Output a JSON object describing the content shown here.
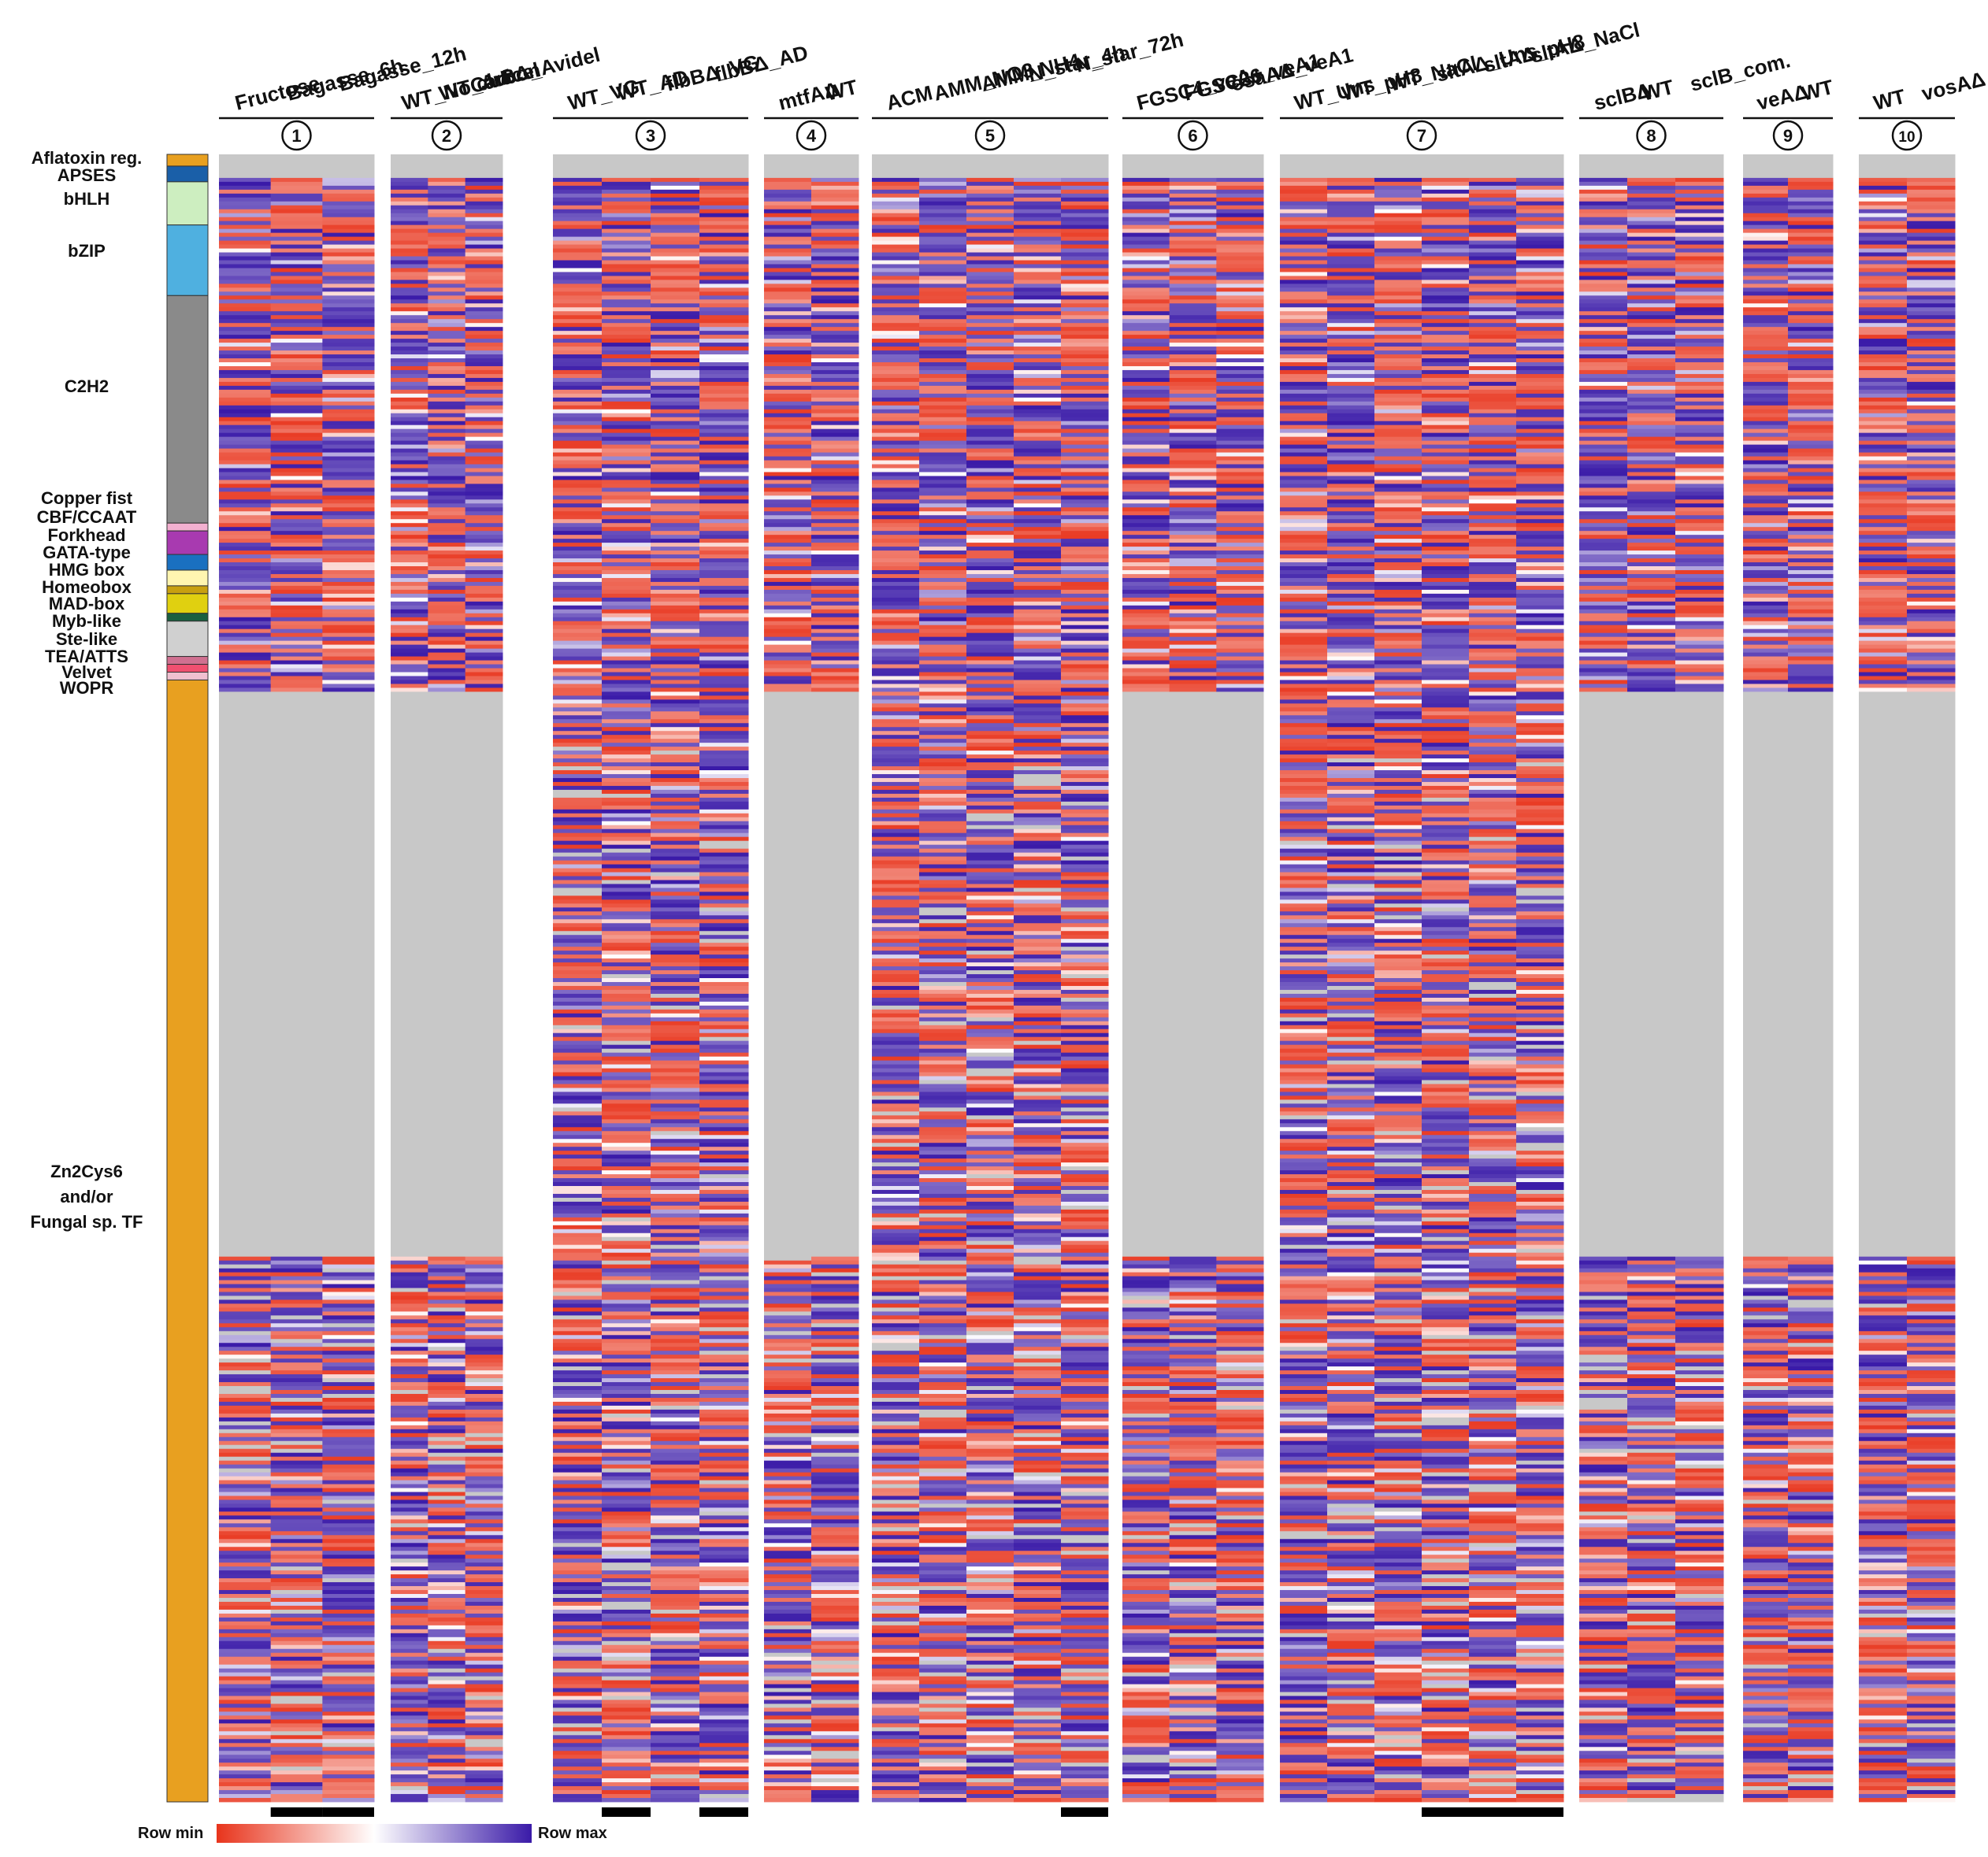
{
  "chart_data": {
    "type": "heatmap",
    "title": "",
    "row_count": 420,
    "colors": {
      "min": "#e8341c",
      "mid": "#ffffff",
      "max": "#3a1aa8",
      "missing": "#c8c8c8",
      "bar_bg": "#000000"
    },
    "legend": {
      "min_label": "Row min",
      "max_label": "Row max"
    },
    "families": [
      {
        "name": "Aflatoxin reg.",
        "color": "#e8a020",
        "rows": 3
      },
      {
        "name": "APSES",
        "color": "#1a5fa8",
        "rows": 4
      },
      {
        "name": "bHLH",
        "color": "#cdeec0",
        "rows": 11
      },
      {
        "name": "bZIP",
        "color": "#4fb0e0",
        "rows": 18
      },
      {
        "name": "C2H2",
        "color": "#8a8a8a",
        "rows": 58
      },
      {
        "name": "Copper fist",
        "color": "#f3b0d0",
        "rows": 2
      },
      {
        "name": "CBF/CCAAT",
        "color": "#a83ab0",
        "rows": 6
      },
      {
        "name": "Forkhead",
        "color": "#1a70c0",
        "rows": 4
      },
      {
        "name": "GATA-type",
        "color": "#fff5b0",
        "rows": 4
      },
      {
        "name": "HMG box",
        "color": "#c8a010",
        "rows": 2
      },
      {
        "name": "Homeobox",
        "color": "#e0d010",
        "rows": 5
      },
      {
        "name": "MAD-box",
        "color": "#1a6040",
        "rows": 2
      },
      {
        "name": "Myb-like",
        "color": "#d0d0d0",
        "rows": 9
      },
      {
        "name": "Ste-like",
        "color": "#d0d0d0",
        "rows": 0
      },
      {
        "name": "TEA/ATTS",
        "color": "#d07090",
        "rows": 2
      },
      {
        "name": "Velvet",
        "color": "#f05070",
        "rows": 2
      },
      {
        "name": "WOPR",
        "color": "#f0c0d0",
        "rows": 2
      },
      {
        "name": "Zn2Cys6 and/or Fungal sp. TF",
        "color": "#e8a020",
        "rows": 286
      }
    ],
    "zn_label_lines": [
      "Zn2Cys6",
      "and/or",
      "Fungal sp. TF"
    ],
    "groups": [
      {
        "num": "1",
        "columns": [
          "Fructose",
          "Bagasse_6h",
          "Bagasse_12h"
        ],
        "bar": [
          1,
          2
        ]
      },
      {
        "num": "2",
        "columns": [
          "WT_NoCarbon",
          "WT_Avicel",
          "clrBΔ_Avidel"
        ],
        "bar": []
      },
      {
        "num": "3",
        "columns": [
          "WT_VG",
          "WT_AD",
          "flbBΔ_VG",
          "flbBΔ_AD"
        ],
        "bar": [
          1,
          3
        ]
      },
      {
        "num": "4",
        "columns": [
          "mtfAΔ",
          "WT"
        ],
        "bar": []
      },
      {
        "num": "5",
        "columns": [
          "ACM",
          "AMM_NO3",
          "AMM_NH4",
          "N_star_4h",
          "N_star_72h"
        ],
        "bar": [
          4
        ]
      },
      {
        "num": "6",
        "columns": [
          "FGSC4_veA+",
          "FGSC26_veA1",
          "osaAΔ_veA1"
        ],
        "bar": []
      },
      {
        "num": "7",
        "columns": [
          "WT_Uns",
          "WT_pH8",
          "WT_NaCl",
          "sltAΔ_Uns",
          "sltAΔ_pH8",
          "sltAΔ_NaCl"
        ],
        "bar": [
          3,
          4,
          5
        ]
      },
      {
        "num": "8",
        "columns": [
          "sclBΔ",
          "WT",
          "sclB_com."
        ],
        "bar": []
      },
      {
        "num": "9",
        "columns": [
          "veAΔ",
          "WT"
        ],
        "bar": []
      },
      {
        "num": "10",
        "columns": [
          "WT",
          "vosAΔ"
        ],
        "bar": []
      }
    ]
  }
}
